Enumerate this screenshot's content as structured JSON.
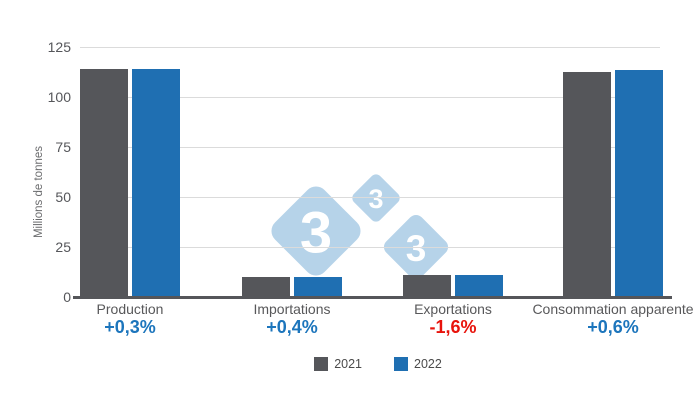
{
  "chart_data": {
    "type": "bar",
    "title": "",
    "ylabel": "Millions de tonnes",
    "ylim": [
      0,
      125
    ],
    "yticks": [
      0,
      25,
      50,
      75,
      100,
      125
    ],
    "grid": true,
    "legend_position": "bottom-center",
    "categories": [
      "Production",
      "Importations",
      "Exportations",
      "Consommation apparente"
    ],
    "series": [
      {
        "name": "2021",
        "color": "#55565A",
        "values": [
          113.8,
          10.0,
          11.2,
          112.6
        ]
      },
      {
        "name": "2022",
        "color": "#1F6FB2",
        "values": [
          114.1,
          10.05,
          11.0,
          113.3
        ]
      }
    ],
    "change_labels": [
      {
        "category": "Production",
        "text": "+0,3%",
        "color": "#1C75BC"
      },
      {
        "category": "Importations",
        "text": "+0,4%",
        "color": "#1C75BC"
      },
      {
        "category": "Exportations",
        "text": "-1,6%",
        "color": "#E8130C"
      },
      {
        "category": "Consommation apparente",
        "text": "+0,6%",
        "color": "#1C75BC"
      }
    ]
  },
  "watermark": {
    "name": "333-logo",
    "digits": [
      "3",
      "3",
      "3"
    ],
    "color": "#1C75BC"
  }
}
